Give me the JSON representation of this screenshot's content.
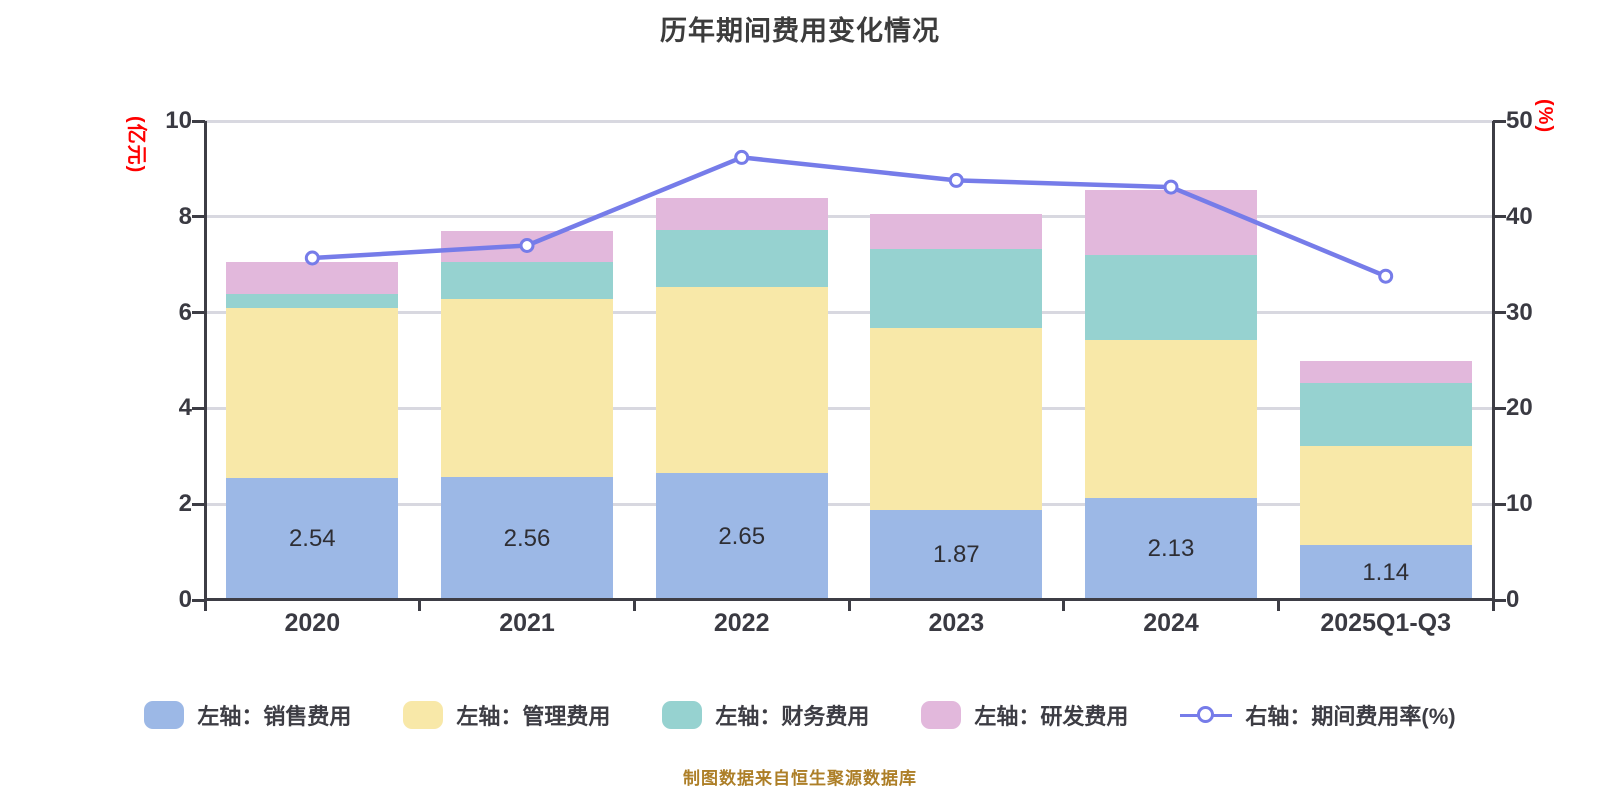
{
  "title": "历年期间费用变化情况",
  "footer": "制图数据来自恒生聚源数据库",
  "left_axis": {
    "unit": "(亿元)",
    "tick_labels": [
      "0",
      "2",
      "4",
      "6",
      "8",
      "10"
    ],
    "tick_values": [
      0,
      2,
      4,
      6,
      8,
      10
    ],
    "max": 10
  },
  "right_axis": {
    "unit": "(%)",
    "tick_labels": [
      "0",
      "10",
      "20",
      "30",
      "40",
      "50"
    ],
    "tick_values": [
      0,
      10,
      20,
      30,
      40,
      50
    ],
    "max": 50
  },
  "colors": {
    "sales_bar": "#9cb8e6",
    "admin_bar": "#f8e8a8",
    "finance_bar": "#96d2d0",
    "rd_bar": "#e2b8dc",
    "rate_line": "#767ce9",
    "marker_fill": "#ffffff",
    "axis_unit_text": "#ff0000",
    "footer_text": "#ad7f28",
    "grid": "#d8d8e0",
    "axis": "#3d3d45"
  },
  "chart_data": {
    "type": "bar",
    "subtype": "stacked-bar-with-line",
    "categories": [
      "2020",
      "2021",
      "2022",
      "2023",
      "2024",
      "2025Q1-Q3"
    ],
    "series": [
      {
        "name": "左轴：销售费用",
        "type": "bar",
        "axis": "left",
        "color": "#9cb8e6",
        "values": [
          2.54,
          2.56,
          2.65,
          1.87,
          2.13,
          1.14
        ],
        "labels": [
          "2.54",
          "2.56",
          "2.65",
          "1.87",
          "2.13",
          "1.14"
        ]
      },
      {
        "name": "左轴：管理费用",
        "type": "bar",
        "axis": "left",
        "color": "#f8e8a8",
        "values": [
          3.56,
          3.72,
          3.88,
          3.81,
          3.3,
          2.08
        ]
      },
      {
        "name": "左轴：财务费用",
        "type": "bar",
        "axis": "left",
        "color": "#96d2d0",
        "values": [
          0.29,
          0.78,
          1.19,
          1.65,
          1.77,
          1.31
        ]
      },
      {
        "name": "左轴：研发费用",
        "type": "bar",
        "axis": "left",
        "color": "#e2b8dc",
        "values": [
          0.67,
          0.64,
          0.67,
          0.73,
          1.36,
          0.46
        ]
      },
      {
        "name": "右轴：期间费用率(%)",
        "type": "line",
        "axis": "right",
        "color": "#767ce9",
        "values": [
          35.7,
          37.0,
          46.2,
          43.8,
          43.1,
          33.8
        ]
      }
    ],
    "left_axis_range": [
      0,
      10
    ],
    "right_axis_range": [
      0,
      50
    ],
    "grid": true,
    "legend_position": "bottom"
  }
}
